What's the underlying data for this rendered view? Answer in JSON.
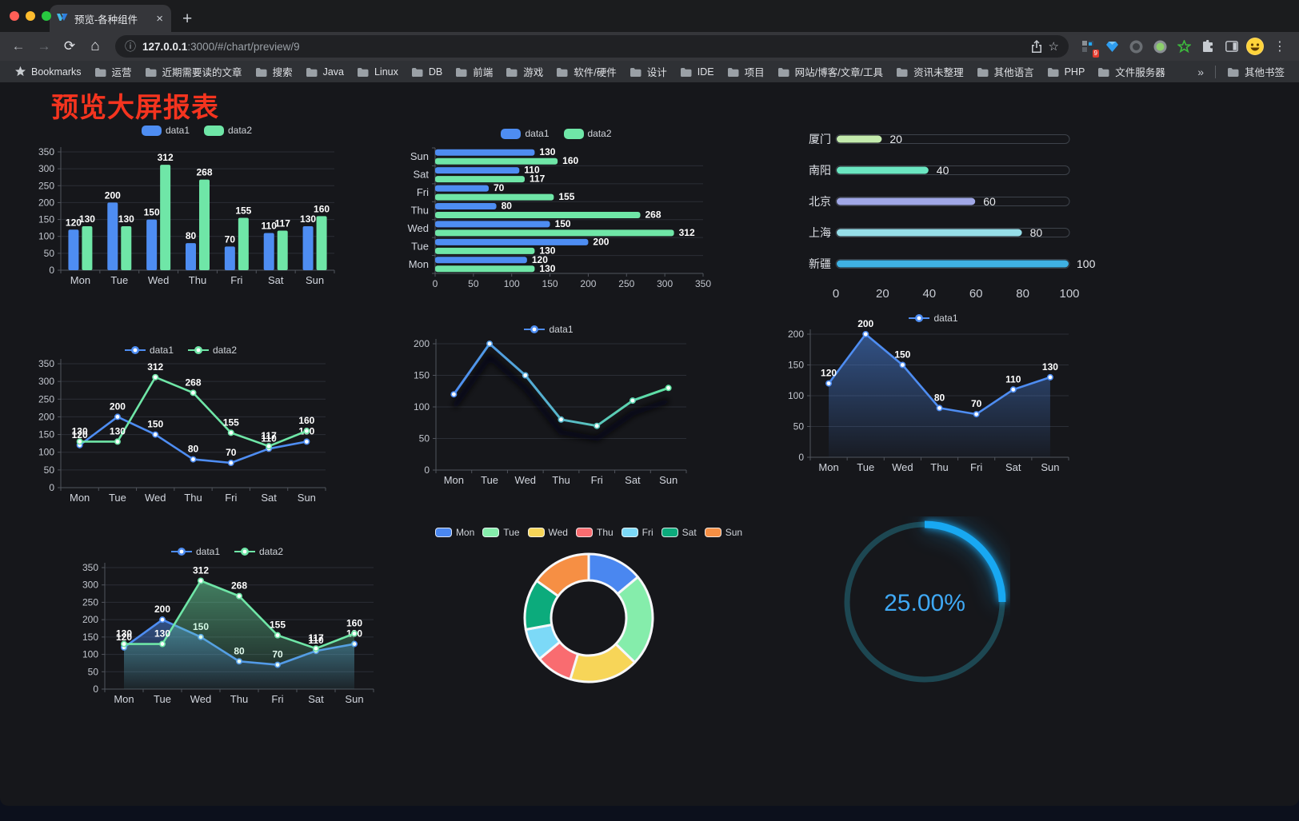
{
  "browser": {
    "tab": {
      "title": "预览-各种组件"
    },
    "url": {
      "host": "127.0.0.1",
      "rest": ":3000/#/chart/preview/9"
    },
    "window_controls": [
      "#ff5f57",
      "#febc2e",
      "#28c840"
    ],
    "extensions_badge": "9",
    "bookmarks": {
      "star_label": "Bookmarks",
      "folders": [
        "运营",
        "近期需要读的文章",
        "搜索",
        "Java",
        "Linux",
        "DB",
        "前端",
        "游戏",
        "软件/硬件",
        "设计",
        "IDE",
        "项目",
        "网站/博客/文章/工具",
        "资讯未整理",
        "其他语言",
        "PHP",
        "文件服务器"
      ],
      "overflow": "»",
      "other": "其他书签"
    }
  },
  "glyphs": {
    "close": "×",
    "new_tab": "+",
    "menu": "⋮",
    "info": "ⓘ",
    "star": "☆",
    "back": "←",
    "forward": "→",
    "reload": "⟳",
    "home": "⌂"
  },
  "content": {
    "title": "预览大屏报表",
    "title_color": "#f5341f"
  },
  "chart_data": [
    {
      "id": "bar-vertical",
      "type": "bar",
      "categories": [
        "Mon",
        "Tue",
        "Wed",
        "Thu",
        "Fri",
        "Sat",
        "Sun"
      ],
      "series": [
        {
          "name": "data1",
          "color": "#4e8df2",
          "values": [
            120,
            200,
            150,
            80,
            70,
            110,
            130
          ]
        },
        {
          "name": "data2",
          "color": "#6fe6a7",
          "values": [
            130,
            130,
            312,
            268,
            155,
            117,
            160
          ]
        }
      ],
      "ylim": [
        0,
        350
      ],
      "ytick_step": 50,
      "value_labels": true,
      "legend_position": "top"
    },
    {
      "id": "bar-horizontal",
      "type": "bar-horizontal",
      "categories": [
        "Mon",
        "Tue",
        "Wed",
        "Thu",
        "Fri",
        "Sat",
        "Sun"
      ],
      "series": [
        {
          "name": "data1",
          "color": "#4e8df2",
          "values": [
            120,
            200,
            150,
            80,
            70,
            110,
            130
          ]
        },
        {
          "name": "data2",
          "color": "#6fe6a7",
          "values": [
            130,
            130,
            312,
            268,
            155,
            117,
            160
          ]
        }
      ],
      "xlim": [
        0,
        350
      ],
      "xtick_step": 50,
      "value_labels": true,
      "legend_position": "top"
    },
    {
      "id": "progress-bars",
      "type": "progress",
      "max": 100,
      "xticks": [
        0,
        20,
        40,
        60,
        80,
        100
      ],
      "items": [
        {
          "label": "厦门",
          "value": 20,
          "color": "#c4ebad"
        },
        {
          "label": "南阳",
          "value": 40,
          "color": "#6be6c1"
        },
        {
          "label": "北京",
          "value": 60,
          "color": "#a0a7e6"
        },
        {
          "label": "上海",
          "value": 80,
          "color": "#96dee8"
        },
        {
          "label": "新疆",
          "value": 100,
          "color": "#3fb1e3"
        }
      ]
    },
    {
      "id": "line-double",
      "type": "line",
      "categories": [
        "Mon",
        "Tue",
        "Wed",
        "Thu",
        "Fri",
        "Sat",
        "Sun"
      ],
      "series": [
        {
          "name": "data1",
          "color": "#4e8df2",
          "values": [
            120,
            200,
            150,
            80,
            70,
            110,
            130
          ]
        },
        {
          "name": "data2",
          "color": "#6fe6a7",
          "values": [
            130,
            130,
            312,
            268,
            155,
            117,
            160
          ]
        }
      ],
      "ylim": [
        0,
        350
      ],
      "ytick_step": 50,
      "value_labels": true,
      "legend_position": "top"
    },
    {
      "id": "line-gradient",
      "type": "line-gradient",
      "categories": [
        "Mon",
        "Tue",
        "Wed",
        "Thu",
        "Fri",
        "Sat",
        "Sun"
      ],
      "series": [
        {
          "name": "data1",
          "values": [
            120,
            200,
            150,
            80,
            70,
            110,
            130
          ]
        }
      ],
      "gradient": [
        "#4e8df2",
        "#5fe3a1"
      ],
      "ylim": [
        0,
        200
      ],
      "ytick_step": 50,
      "value_labels": false,
      "legend_position": "top"
    },
    {
      "id": "area-single",
      "type": "area",
      "categories": [
        "Mon",
        "Tue",
        "Wed",
        "Thu",
        "Fri",
        "Sat",
        "Sun"
      ],
      "series": [
        {
          "name": "data1",
          "color": "#4e8df2",
          "values": [
            120,
            200,
            150,
            80,
            70,
            110,
            130
          ]
        }
      ],
      "ylim": [
        0,
        200
      ],
      "ytick_step": 50,
      "value_labels": true,
      "legend_position": "top"
    },
    {
      "id": "area-double",
      "type": "area",
      "categories": [
        "Mon",
        "Tue",
        "Wed",
        "Thu",
        "Fri",
        "Sat",
        "Sun"
      ],
      "series": [
        {
          "name": "data1",
          "color": "#4e8df2",
          "values": [
            120,
            200,
            150,
            80,
            70,
            110,
            130
          ]
        },
        {
          "name": "data2",
          "color": "#6fe6a7",
          "values": [
            130,
            130,
            312,
            268,
            155,
            117,
            160
          ]
        }
      ],
      "ylim": [
        0,
        350
      ],
      "ytick_step": 50,
      "value_labels": true,
      "legend_position": "top"
    },
    {
      "id": "pie-donut",
      "type": "pie",
      "labels": [
        "Mon",
        "Tue",
        "Wed",
        "Thu",
        "Fri",
        "Sat",
        "Sun"
      ],
      "values": [
        120,
        200,
        150,
        80,
        70,
        110,
        130
      ],
      "colors": [
        "#4a87f0",
        "#85edab",
        "#f7d558",
        "#f96c70",
        "#7cd9f7",
        "#0cab7c",
        "#f68f44"
      ],
      "legend_position": "top"
    },
    {
      "id": "gauge",
      "type": "gauge",
      "value": 25,
      "display": "25.00%",
      "arc_color": "#18a8f2",
      "track_color": "#1d4752",
      "text_color": "#3fa9f5"
    }
  ]
}
